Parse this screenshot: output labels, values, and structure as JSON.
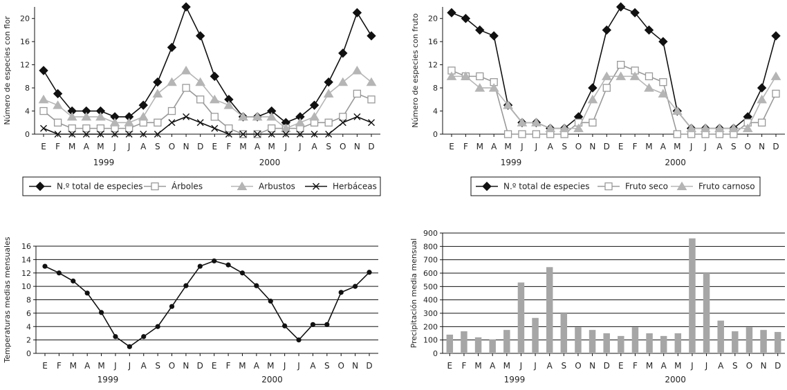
{
  "chart_data": [
    {
      "type": "line",
      "title": "",
      "xlabel": "",
      "ylabel": "Número de especies con flor",
      "ylim": [
        0,
        22
      ],
      "yticks": [
        0,
        4,
        8,
        12,
        16,
        20
      ],
      "categories": [
        "E",
        "F",
        "M",
        "A",
        "M",
        "J",
        "J",
        "A",
        "S",
        "O",
        "N",
        "D",
        "E",
        "F",
        "M",
        "A",
        "M",
        "J",
        "J",
        "A",
        "S",
        "O",
        "N",
        "D"
      ],
      "years": [
        "1999",
        "2000"
      ],
      "grid": false,
      "legend_position": "bottom",
      "series": [
        {
          "name": "N.º total de especies",
          "marker": "diamond-filled",
          "color": "#111111",
          "values": [
            11,
            7,
            4,
            4,
            4,
            3,
            3,
            5,
            9,
            15,
            22,
            17,
            10,
            6,
            3,
            3,
            4,
            2,
            3,
            5,
            9,
            14,
            21,
            17
          ]
        },
        {
          "name": "Árboles",
          "marker": "square-open",
          "color": "#999999",
          "values": [
            4,
            2,
            1,
            1,
            1,
            1,
            1,
            2,
            2,
            4,
            8,
            6,
            3,
            1,
            0,
            0,
            1,
            1,
            1,
            2,
            2,
            3,
            7,
            6
          ]
        },
        {
          "name": "Arbustos",
          "marker": "triangle-filled",
          "color": "#b5b5b5",
          "values": [
            6,
            5,
            3,
            3,
            3,
            2,
            2,
            3,
            7,
            9,
            11,
            9,
            6,
            5,
            3,
            3,
            3,
            1,
            2,
            3,
            7,
            9,
            11,
            9
          ]
        },
        {
          "name": "Herbáceas",
          "marker": "x",
          "color": "#111111",
          "values": [
            1,
            0,
            0,
            0,
            0,
            0,
            0,
            0,
            0,
            2,
            3,
            2,
            1,
            0,
            0,
            0,
            0,
            0,
            0,
            0,
            0,
            2,
            3,
            2
          ]
        }
      ]
    },
    {
      "type": "line",
      "title": "",
      "xlabel": "",
      "ylabel": "Número de especies con fruto",
      "ylim": [
        0,
        22
      ],
      "yticks": [
        0,
        4,
        8,
        12,
        16,
        20
      ],
      "categories": [
        "E",
        "F",
        "M",
        "A",
        "M",
        "J",
        "J",
        "A",
        "S",
        "O",
        "N",
        "D",
        "E",
        "F",
        "M",
        "A",
        "M",
        "J",
        "J",
        "A",
        "S",
        "O",
        "N",
        "D"
      ],
      "years": [
        "1999",
        "2000"
      ],
      "grid": false,
      "legend_position": "bottom",
      "series": [
        {
          "name": "N.º total de especies",
          "marker": "diamond-filled",
          "color": "#111111",
          "values": [
            21,
            20,
            18,
            17,
            5,
            2,
            2,
            1,
            1,
            3,
            8,
            18,
            22,
            21,
            18,
            16,
            4,
            1,
            1,
            1,
            1,
            3,
            8,
            17
          ]
        },
        {
          "name": "Fruto seco",
          "marker": "square-open",
          "color": "#999999",
          "values": [
            11,
            10,
            10,
            9,
            0,
            0,
            0,
            0,
            0,
            2,
            2,
            8,
            12,
            11,
            10,
            9,
            0,
            0,
            0,
            0,
            0,
            2,
            2,
            7
          ]
        },
        {
          "name": "Fruto carnoso",
          "marker": "triangle-filled",
          "color": "#b5b5b5",
          "values": [
            10,
            10,
            8,
            8,
            5,
            2,
            2,
            1,
            1,
            1,
            6,
            10,
            10,
            10,
            8,
            7,
            4,
            1,
            1,
            1,
            1,
            1,
            6,
            10
          ]
        }
      ]
    },
    {
      "type": "line",
      "title": "",
      "xlabel": "",
      "ylabel": "Temperaturas medias mensuales",
      "ylim": [
        0,
        16
      ],
      "yticks": [
        0,
        2,
        4,
        6,
        8,
        10,
        12,
        14,
        16
      ],
      "categories": [
        "E",
        "F",
        "M",
        "A",
        "M",
        "J",
        "J",
        "A",
        "S",
        "O",
        "N",
        "D",
        "E",
        "F",
        "M",
        "A",
        "M",
        "J",
        "J",
        "A",
        "S",
        "O",
        "N",
        "D"
      ],
      "years": [
        "1999",
        "2000"
      ],
      "grid": true,
      "series": [
        {
          "name": "",
          "marker": "dot",
          "color": "#111111",
          "values": [
            13,
            12,
            10.8,
            9,
            6.1,
            2.5,
            1,
            2.5,
            4,
            7,
            10.1,
            13,
            13.8,
            13.2,
            12,
            10.1,
            7.8,
            4.1,
            2,
            4.3,
            4.3,
            9.1,
            10,
            12.1
          ]
        }
      ]
    },
    {
      "type": "bar",
      "title": "",
      "xlabel": "",
      "ylabel": "Precipitación media mensual",
      "ylim": [
        0,
        900
      ],
      "yticks": [
        0,
        100,
        200,
        300,
        400,
        500,
        600,
        700,
        800,
        900
      ],
      "categories": [
        "E",
        "F",
        "M",
        "A",
        "M",
        "J",
        "J",
        "A",
        "S",
        "O",
        "N",
        "D",
        "E",
        "F",
        "M",
        "A",
        "M",
        "J",
        "J",
        "A",
        "S",
        "O",
        "N",
        "D"
      ],
      "years": [
        "1999",
        "2000"
      ],
      "grid": true,
      "series": [
        {
          "name": "",
          "color": "#a6a6a6",
          "values": [
            140,
            165,
            120,
            105,
            175,
            530,
            265,
            645,
            300,
            195,
            175,
            150,
            130,
            195,
            150,
            130,
            150,
            860,
            600,
            245,
            165,
            195,
            175,
            160
          ]
        }
      ]
    }
  ]
}
